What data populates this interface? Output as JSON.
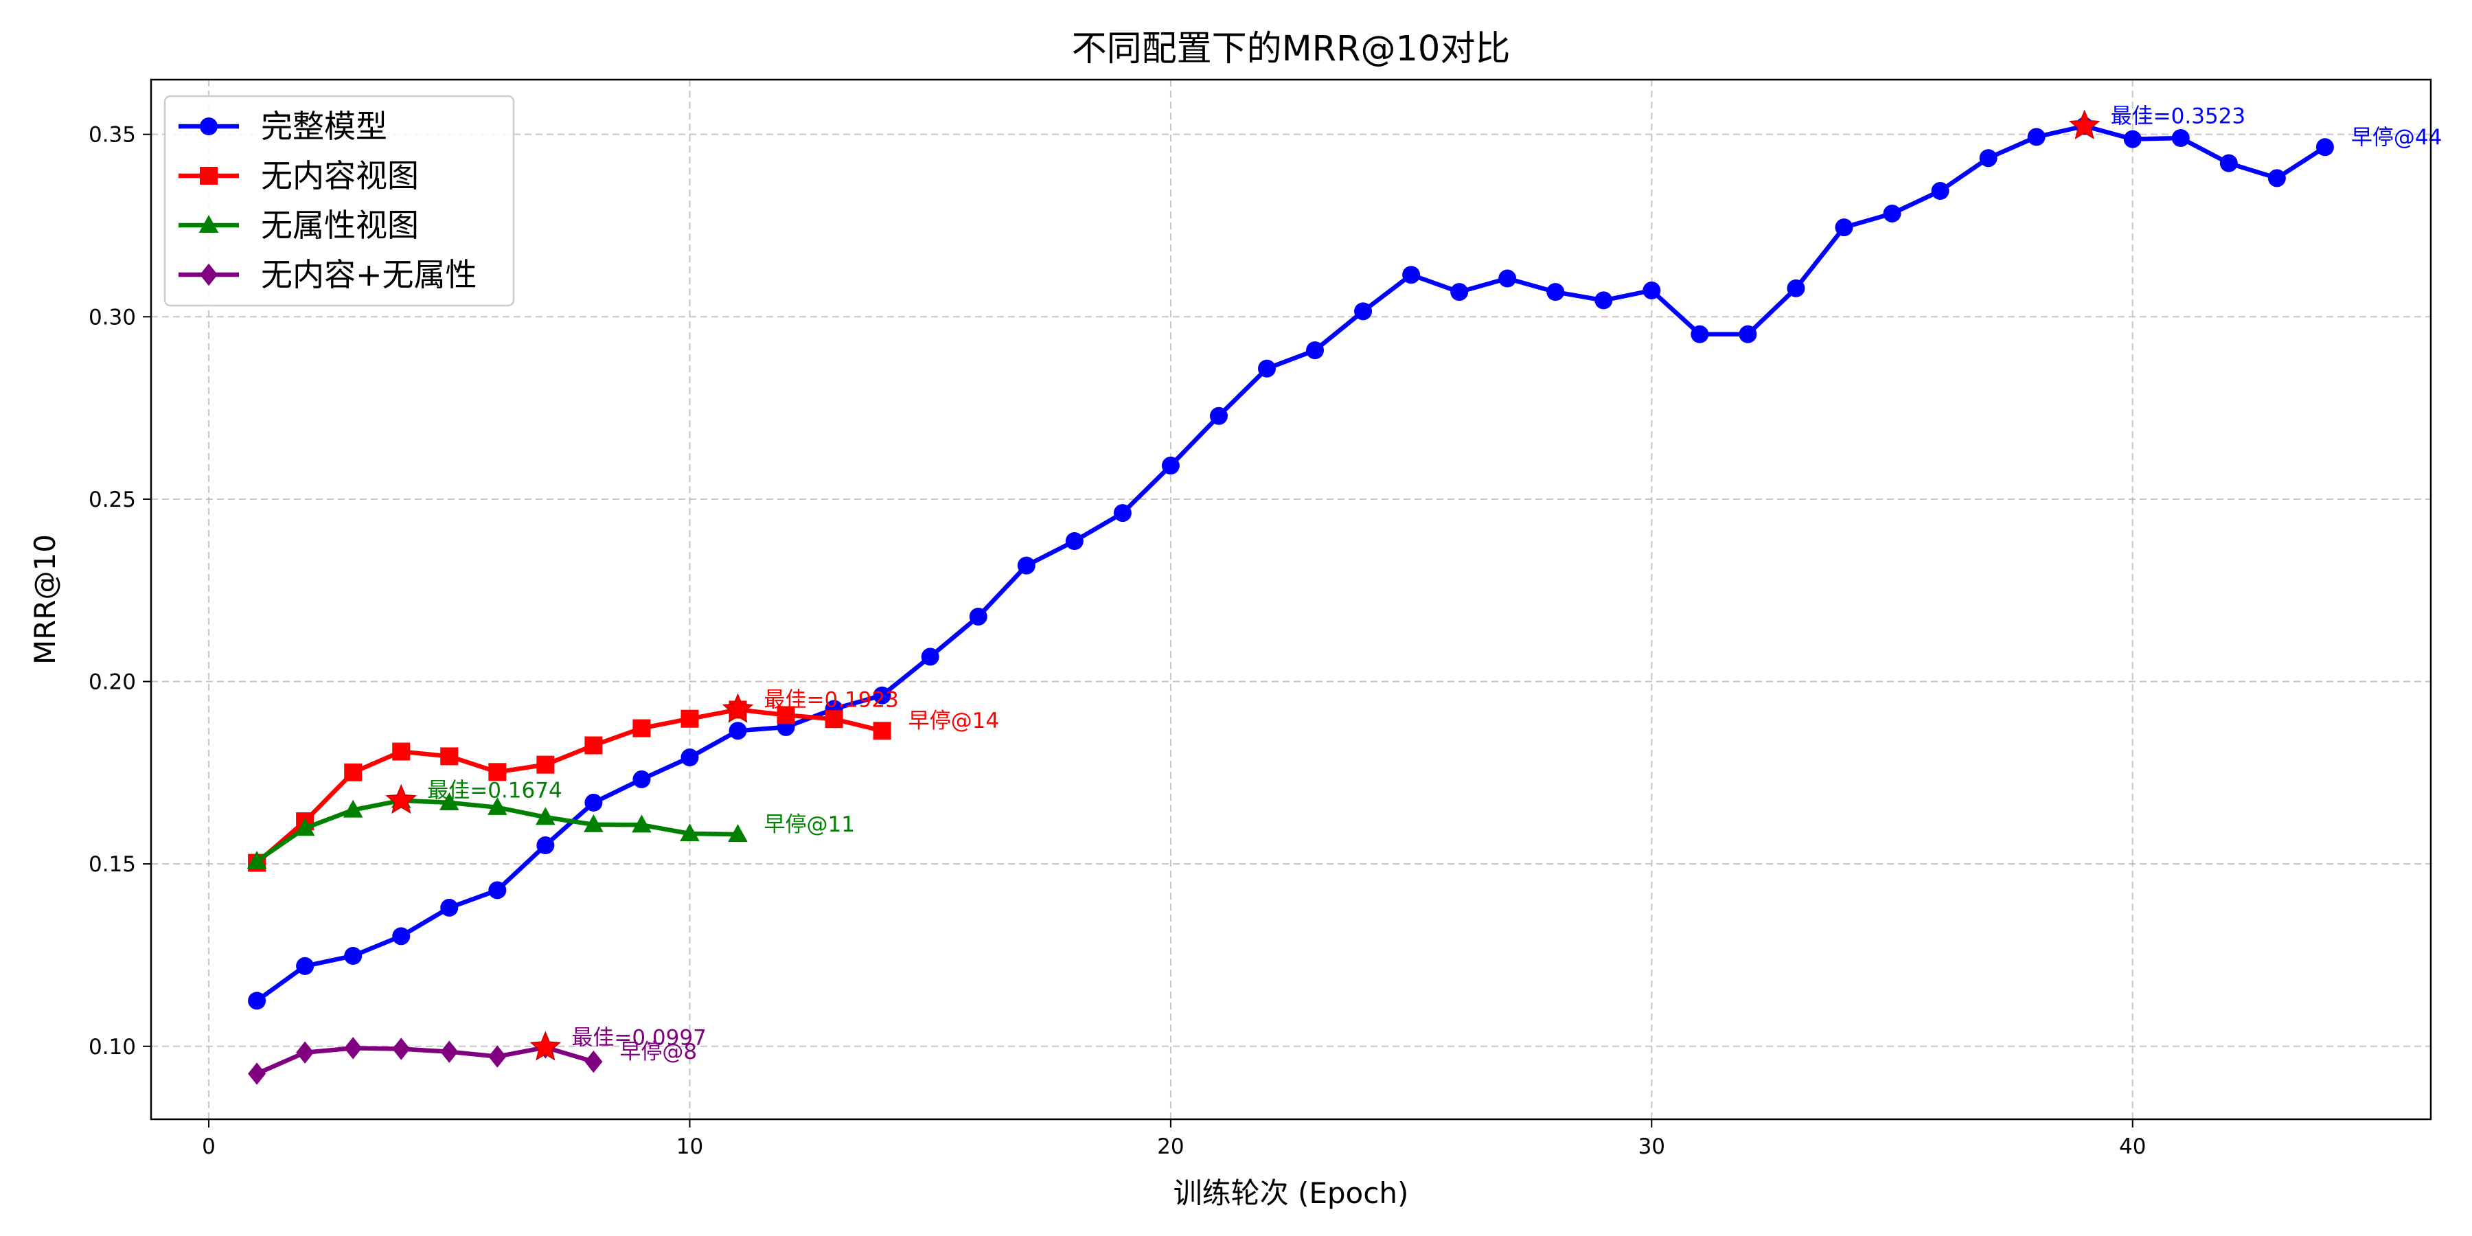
{
  "chart_data": {
    "type": "line",
    "title": "不同配置下的MRR@10对比",
    "xlabel": "训练轮次 (Epoch)",
    "ylabel": "MRR@10",
    "xlim": [
      -1.2,
      46.2
    ],
    "ylim": [
      0.08,
      0.365
    ],
    "xticks": [
      0,
      10,
      20,
      30,
      40
    ],
    "xtick_labels": [
      "0",
      "10",
      "20",
      "30",
      "40"
    ],
    "yticks": [
      0.1,
      0.15,
      0.2,
      0.25,
      0.3,
      0.35
    ],
    "ytick_labels": [
      "0.10",
      "0.15",
      "0.20",
      "0.25",
      "0.30",
      "0.35"
    ],
    "grid": true,
    "legend_position": "top-left",
    "series": [
      {
        "name": "完整模型",
        "color": "#0000ff",
        "marker": "circle",
        "x": [
          1,
          2,
          3,
          4,
          5,
          6,
          7,
          8,
          9,
          10,
          11,
          12,
          13,
          14,
          15,
          16,
          17,
          18,
          19,
          20,
          21,
          22,
          23,
          24,
          25,
          26,
          27,
          28,
          29,
          30,
          31,
          32,
          33,
          34,
          35,
          36,
          37,
          38,
          39,
          40,
          41,
          42,
          43,
          44
        ],
        "values": [
          0.1125,
          0.122,
          0.1248,
          0.1302,
          0.138,
          0.1428,
          0.1551,
          0.1668,
          0.1732,
          0.1792,
          0.1865,
          0.1875,
          0.1925,
          0.1962,
          0.2068,
          0.2178,
          0.2318,
          0.2385,
          0.2462,
          0.2592,
          0.2728,
          0.2858,
          0.2908,
          0.3015,
          0.3115,
          0.3068,
          0.3105,
          0.3068,
          0.3045,
          0.3072,
          0.2952,
          0.2952,
          0.3078,
          0.3245,
          0.3283,
          0.3345,
          0.3435,
          0.3493,
          0.3523,
          0.3487,
          0.349,
          0.3421,
          0.338,
          0.3465
        ],
        "best_x": 39,
        "best_value": 0.3523,
        "best_label": "最佳=0.3523",
        "stop_label": "早停@44"
      },
      {
        "name": "无内容视图",
        "color": "#ff0000",
        "marker": "square",
        "x": [
          1,
          2,
          3,
          4,
          5,
          6,
          7,
          8,
          9,
          10,
          11,
          12,
          13,
          14
        ],
        "values": [
          0.1503,
          0.1617,
          0.1751,
          0.1808,
          0.1795,
          0.1752,
          0.1772,
          0.1825,
          0.1872,
          0.1898,
          0.1923,
          0.1908,
          0.1897,
          0.1865
        ],
        "best_x": 11,
        "best_value": 0.1923,
        "best_label": "最佳=0.1923",
        "stop_label": "早停@14"
      },
      {
        "name": "无属性视图",
        "color": "#008000",
        "marker": "triangle",
        "x": [
          1,
          2,
          3,
          4,
          5,
          6,
          7,
          8,
          9,
          10,
          11
        ],
        "values": [
          0.1508,
          0.1598,
          0.1648,
          0.1674,
          0.1668,
          0.1655,
          0.1628,
          0.1608,
          0.1607,
          0.1583,
          0.1581
        ],
        "best_x": 4,
        "best_value": 0.1674,
        "best_label": "最佳=0.1674",
        "stop_label": "早停@11"
      },
      {
        "name": "无内容+无属性",
        "color": "#800080",
        "marker": "diamond",
        "x": [
          1,
          2,
          3,
          4,
          5,
          6,
          7,
          8
        ],
        "values": [
          0.0925,
          0.0983,
          0.0995,
          0.0993,
          0.0985,
          0.0972,
          0.0997,
          0.0958
        ],
        "best_x": 7,
        "best_value": 0.0997,
        "best_label": "最佳=0.0997",
        "stop_label": "早停@8"
      }
    ]
  }
}
